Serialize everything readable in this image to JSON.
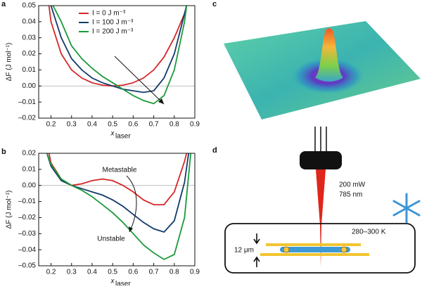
{
  "chart_data": [
    {
      "type": "line",
      "panel_label": "a",
      "ylabel": "ΔF (J mol⁻¹)",
      "xlabel": "x",
      "xlabel_sub": "laser",
      "xlim": [
        0.14,
        0.9
      ],
      "xticks": [
        0.2,
        0.3,
        0.4,
        0.5,
        0.6,
        0.7,
        0.8,
        0.9
      ],
      "ylim": [
        -0.02,
        0.05
      ],
      "yticks": [
        {
          "value": -0.02,
          "label": "–0.02"
        },
        {
          "value": -0.01,
          "label": "–0.01"
        },
        {
          "value": 0,
          "label": "0.00"
        },
        {
          "value": 0.01,
          "label": "0.01"
        },
        {
          "value": 0.02,
          "label": "0.02"
        },
        {
          "value": 0.03,
          "label": "0.03"
        },
        {
          "value": 0.04,
          "label": "0.04"
        },
        {
          "value": 0.05,
          "label": "0.05"
        }
      ],
      "reference_line": 0,
      "legend": "top",
      "series": [
        {
          "name": "I = 0 J m⁻³",
          "color": "#d62728",
          "x": [
            0.19,
            0.2,
            0.25,
            0.3,
            0.35,
            0.4,
            0.45,
            0.5,
            0.55,
            0.6,
            0.65,
            0.7,
            0.75,
            0.8,
            0.85,
            0.86
          ],
          "values": [
            0.05,
            0.04,
            0.02,
            0.01,
            0.005,
            0.002,
            0.0005,
            0,
            0.0005,
            0.002,
            0.005,
            0.01,
            0.018,
            0.03,
            0.045,
            0.05
          ]
        },
        {
          "name": "I = 100 J m⁻³",
          "color": "#123a6b",
          "x": [
            0.2,
            0.25,
            0.3,
            0.35,
            0.4,
            0.45,
            0.5,
            0.55,
            0.6,
            0.65,
            0.7,
            0.75,
            0.8,
            0.85,
            0.86
          ],
          "values": [
            0.05,
            0.03,
            0.017,
            0.01,
            0.005,
            0.002,
            0,
            -0.002,
            -0.003,
            -0.004,
            -0.003,
            0.005,
            0.02,
            0.045,
            0.05
          ]
        },
        {
          "name": "I = 200 J m⁻³",
          "color": "#1a9a3a",
          "x": [
            0.21,
            0.25,
            0.3,
            0.35,
            0.4,
            0.45,
            0.5,
            0.55,
            0.6,
            0.65,
            0.7,
            0.75,
            0.8,
            0.85,
            0.86
          ],
          "values": [
            0.05,
            0.04,
            0.025,
            0.017,
            0.011,
            0.006,
            0.002,
            -0.002,
            -0.006,
            -0.009,
            -0.011,
            -0.006,
            0.01,
            0.04,
            0.05
          ]
        }
      ]
    },
    {
      "type": "line",
      "panel_label": "b",
      "ylabel": "ΔF (J mol⁻¹)",
      "xlabel": "x",
      "xlabel_sub": "laser",
      "xlim": [
        0.14,
        0.9
      ],
      "xticks": [
        0.2,
        0.3,
        0.4,
        0.5,
        0.6,
        0.7,
        0.8,
        0.9
      ],
      "ylim": [
        -0.05,
        0.02
      ],
      "yticks": [
        {
          "value": -0.05,
          "label": "–0.05"
        },
        {
          "value": -0.04,
          "label": "–0.04"
        },
        {
          "value": -0.03,
          "label": "–0.03"
        },
        {
          "value": -0.02,
          "label": "–0.02"
        },
        {
          "value": -0.01,
          "label": "–0.01"
        },
        {
          "value": 0,
          "label": "0.00"
        },
        {
          "value": 0.01,
          "label": "0.01"
        },
        {
          "value": 0.02,
          "label": "0.02"
        }
      ],
      "reference_line": 0,
      "annotations": [
        "Metastable",
        "Unstable"
      ],
      "series": [
        {
          "color": "#d62728",
          "x": [
            0.19,
            0.2,
            0.25,
            0.3,
            0.35,
            0.4,
            0.45,
            0.5,
            0.55,
            0.6,
            0.65,
            0.7,
            0.75,
            0.8,
            0.85,
            0.86
          ],
          "values": [
            0.02,
            0.014,
            0.004,
            0,
            0.001,
            0.003,
            0.004,
            0.003,
            0,
            -0.004,
            -0.009,
            -0.012,
            -0.012,
            -0.004,
            0.015,
            0.02
          ]
        },
        {
          "color": "#123a6b",
          "x": [
            0.18,
            0.2,
            0.25,
            0.3,
            0.35,
            0.4,
            0.45,
            0.5,
            0.55,
            0.6,
            0.65,
            0.7,
            0.75,
            0.8,
            0.85,
            0.87
          ],
          "values": [
            0.02,
            0.012,
            0.003,
            0,
            -0.002,
            -0.004,
            -0.006,
            -0.009,
            -0.013,
            -0.018,
            -0.023,
            -0.027,
            -0.029,
            -0.022,
            0.002,
            0.02
          ]
        },
        {
          "color": "#1a9a3a",
          "x": [
            0.18,
            0.2,
            0.25,
            0.3,
            0.35,
            0.4,
            0.45,
            0.5,
            0.55,
            0.6,
            0.65,
            0.7,
            0.75,
            0.8,
            0.85,
            0.88
          ],
          "values": [
            0.02,
            0.013,
            0.004,
            0,
            -0.003,
            -0.007,
            -0.012,
            -0.017,
            -0.023,
            -0.03,
            -0.037,
            -0.042,
            -0.046,
            -0.043,
            -0.02,
            0.02
          ]
        }
      ]
    }
  ],
  "panel_c": {
    "panel_label": "c"
  },
  "panel_d": {
    "panel_label": "d",
    "power": "200 mW",
    "wavelength": "785 nm",
    "temperature": "280–300 K",
    "thickness": "12 μm"
  }
}
